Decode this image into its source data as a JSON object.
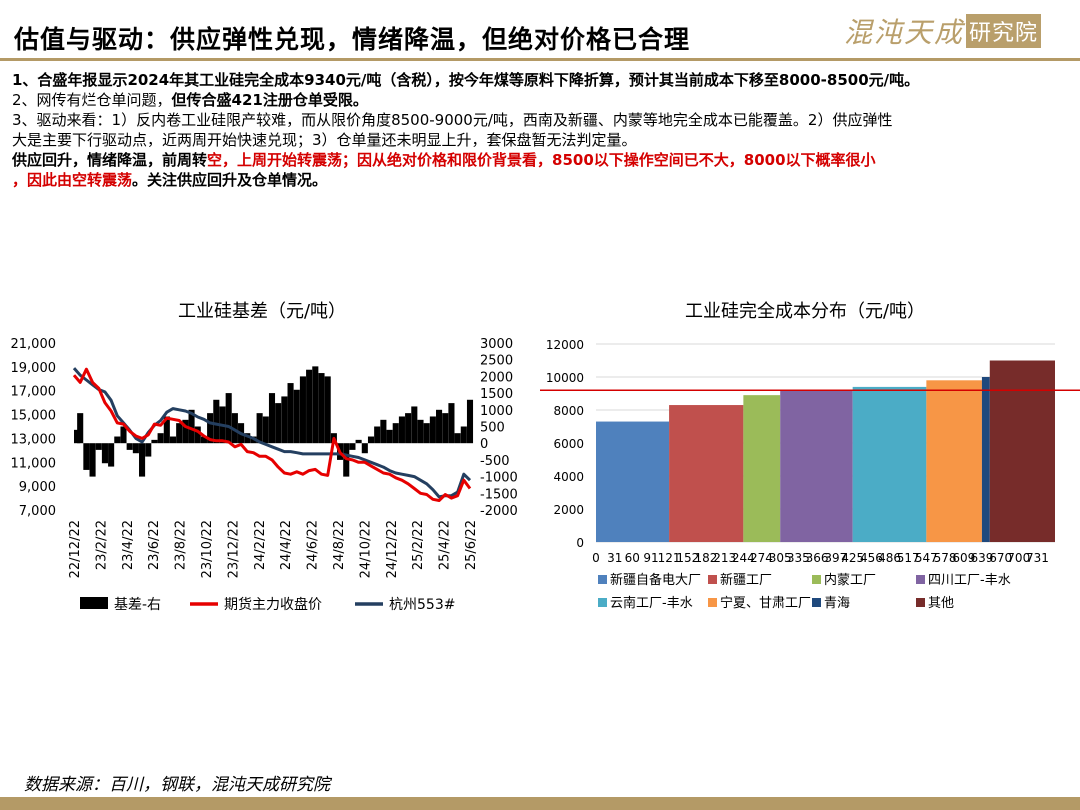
{
  "header": {
    "title": "估值与驱动：供应弹性兑现，情绪降温，但绝对价格已合理",
    "logo_main": "混沌天成",
    "logo_box": "研究院"
  },
  "text": {
    "line1_a": "1、合盛年报显示2024年其工业硅完全成本9340元/吨（含税），按今年煤等原料下降折算，预计其当前成本下移至8000-8500元/吨。",
    "line2_a": "2、网传有烂仓单问题，",
    "line2_b": "但传合盛421注册仓单受限。",
    "line3": "3、驱动来看：1）反内卷工业硅限产较难，而从限价角度8500-9000元/吨，西南及新疆、内蒙等地完全成本已能覆盖。2）供应弹性",
    "line4": "大是主要下行驱动点，近两周开始快速兑现；3）仓单量还未明显上升，套保盘暂无法判定量。",
    "line5_a": "    供应回升，情绪降温，前周转",
    "line5_b": "空，上周开始转震荡；因从绝对价格和限价背景看，8500以下操作空间已不大，8000以下概率很小",
    "line6_a": "，因此由空转震荡",
    "line6_b": "。关注供应回升及仓单情况。"
  },
  "footer": {
    "source": "数据来源：百川，钢联，混沌天成研究院"
  },
  "chart_data": [
    {
      "type": "line",
      "title": "工业硅基差（元/吨）",
      "x_ticks": [
        "22/12/22",
        "23/2/22",
        "23/4/22",
        "23/6/22",
        "23/8/22",
        "23/10/22",
        "23/12/22",
        "24/2/22",
        "24/4/22",
        "24/6/22",
        "24/8/22",
        "24/10/22",
        "24/12/22",
        "25/2/22",
        "25/4/22",
        "25/6/22"
      ],
      "y_left_ticks": [
        "21,000",
        "19,000",
        "17,000",
        "15,000",
        "13,000",
        "11,000",
        "9,000",
        "7,000"
      ],
      "y_left_lim": [
        7000,
        21000
      ],
      "y_right_ticks": [
        "3000",
        "2500",
        "2000",
        "1500",
        "1000",
        "500",
        "0",
        "-500",
        "-1000",
        "-1500",
        "-2000"
      ],
      "y_right_lim": [
        -2000,
        3000
      ],
      "x_lim": [
        0,
        960
      ],
      "series": [
        {
          "name": "基差-右",
          "kind": "bar",
          "axis": "right",
          "color": "#000000",
          "x": [
            0,
            15,
            30,
            45,
            60,
            75,
            90,
            105,
            120,
            135,
            150,
            165,
            180,
            195,
            210,
            225,
            240,
            255,
            270,
            285,
            300,
            315,
            330,
            345,
            360,
            375,
            390,
            405,
            420,
            435,
            450,
            465,
            480,
            495,
            510,
            525,
            540,
            555,
            570,
            585,
            600,
            615,
            630,
            645,
            660,
            675,
            690,
            705,
            720,
            735,
            750,
            765,
            780,
            795,
            810,
            825,
            840,
            855,
            870,
            885,
            900,
            915,
            930,
            945,
            960
          ],
          "values": [
            400,
            900,
            -800,
            -1000,
            -200,
            -600,
            -700,
            200,
            500,
            -200,
            -300,
            -1000,
            -400,
            100,
            300,
            800,
            200,
            600,
            700,
            1000,
            500,
            200,
            900,
            1300,
            1100,
            1500,
            900,
            600,
            300,
            200,
            900,
            800,
            1500,
            1200,
            1400,
            1800,
            1600,
            2000,
            2200,
            2300,
            2100,
            2000,
            300,
            -500,
            -1000,
            -200,
            100,
            -300,
            200,
            500,
            700,
            400,
            600,
            800,
            900,
            1100,
            700,
            600,
            800,
            1000,
            900,
            1200,
            300,
            500,
            1300
          ]
        },
        {
          "name": "期货主力收盘价",
          "kind": "line",
          "axis": "left",
          "color": "#e60000",
          "x": [
            0,
            15,
            30,
            45,
            60,
            75,
            90,
            105,
            120,
            135,
            150,
            165,
            180,
            195,
            210,
            225,
            240,
            255,
            270,
            285,
            300,
            315,
            330,
            345,
            360,
            375,
            390,
            405,
            420,
            435,
            450,
            465,
            480,
            495,
            510,
            525,
            540,
            555,
            570,
            585,
            600,
            615,
            630,
            645,
            660,
            675,
            690,
            705,
            720,
            735,
            750,
            765,
            780,
            795,
            810,
            825,
            840,
            855,
            870,
            885,
            900,
            915,
            930,
            945,
            960
          ],
          "values": [
            18300,
            17700,
            18800,
            17700,
            17200,
            16000,
            15300,
            14300,
            14200,
            13600,
            13200,
            13000,
            13300,
            14200,
            14100,
            14700,
            14600,
            14500,
            14000,
            13800,
            13600,
            13200,
            12900,
            12800,
            12800,
            12700,
            12300,
            12500,
            11900,
            11800,
            11500,
            11500,
            11200,
            10600,
            10100,
            10000,
            10200,
            10000,
            10300,
            10400,
            10000,
            9900,
            13000,
            11800,
            11300,
            11200,
            11000,
            11000,
            10700,
            10400,
            10100,
            10000,
            9700,
            9500,
            9200,
            8800,
            8400,
            8300,
            7900,
            7800,
            8300,
            8000,
            8200,
            9500,
            8800
          ]
        },
        {
          "name": "杭州553#",
          "kind": "line",
          "axis": "left",
          "color": "#243f60",
          "x": [
            0,
            15,
            30,
            45,
            60,
            75,
            90,
            105,
            120,
            135,
            150,
            165,
            180,
            195,
            210,
            225,
            240,
            255,
            270,
            285,
            300,
            315,
            330,
            345,
            360,
            375,
            390,
            405,
            420,
            435,
            450,
            465,
            480,
            495,
            510,
            525,
            540,
            555,
            570,
            585,
            600,
            615,
            630,
            645,
            660,
            675,
            690,
            705,
            720,
            735,
            750,
            765,
            780,
            795,
            810,
            825,
            840,
            855,
            870,
            885,
            900,
            915,
            930,
            945,
            960
          ],
          "values": [
            18900,
            18300,
            17900,
            17500,
            17100,
            16900,
            16200,
            14900,
            14300,
            13700,
            13000,
            12700,
            13500,
            14100,
            14500,
            15200,
            15500,
            15400,
            15300,
            15100,
            14800,
            14600,
            14300,
            14200,
            14100,
            14000,
            13700,
            13400,
            13200,
            13000,
            12700,
            12500,
            12300,
            12100,
            11900,
            11900,
            11800,
            11700,
            11700,
            11700,
            11700,
            11700,
            11700,
            11700,
            11600,
            11500,
            11400,
            11200,
            11000,
            10800,
            10600,
            10300,
            10100,
            10000,
            9900,
            9800,
            9500,
            9200,
            8700,
            8100,
            8200,
            8200,
            8500,
            10000,
            9500
          ]
        }
      ],
      "legend": "bottom"
    },
    {
      "type": "bar",
      "title": "工业硅完全成本分布（元/吨）",
      "x_ticks": [
        "0",
        "31",
        "60",
        "91",
        "121",
        "152",
        "182",
        "213",
        "244",
        "274",
        "305",
        "335",
        "366",
        "397",
        "425",
        "456",
        "486",
        "517",
        "547",
        "578",
        "609",
        "639",
        "670",
        "700",
        "731"
      ],
      "x_lim": [
        0,
        760
      ],
      "ylim": [
        0,
        12000
      ],
      "y_ticks": [
        "12000",
        "10000",
        "8000",
        "6000",
        "4000",
        "2000",
        "0"
      ],
      "series": [
        {
          "name": "新疆自备电大厂",
          "color": "#4f81bd",
          "x_start": 0,
          "x_end": 121,
          "value": 7300
        },
        {
          "name": "新疆工厂",
          "color": "#c0504d",
          "x_start": 121,
          "x_end": 244,
          "value": 8300
        },
        {
          "name": "内蒙工厂",
          "color": "#9bbb59",
          "x_start": 244,
          "x_end": 305,
          "value": 8900
        },
        {
          "name": "四川工厂-丰水",
          "color": "#8064a2",
          "x_start": 305,
          "x_end": 425,
          "value": 9200
        },
        {
          "name": "云南工厂-丰水",
          "color": "#4bacc6",
          "x_start": 425,
          "x_end": 547,
          "value": 9400
        },
        {
          "name": "宁夏、甘肃工厂",
          "color": "#f79646",
          "x_start": 547,
          "x_end": 639,
          "value": 9800
        },
        {
          "name": "青海",
          "color": "#1f497d",
          "x_start": 639,
          "x_end": 652,
          "value": 10000
        },
        {
          "name": "其他",
          "color": "#772c2a",
          "x_start": 652,
          "x_end": 760,
          "value": 11000
        }
      ],
      "reference_line": {
        "value": 9200,
        "color": "#d40000"
      },
      "legend": "bottom"
    }
  ]
}
